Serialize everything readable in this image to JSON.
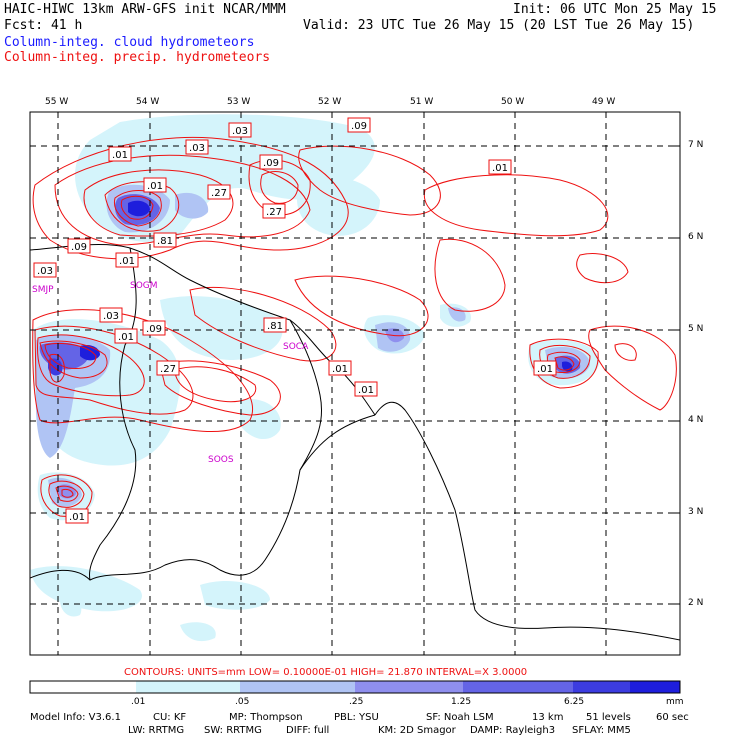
{
  "header": {
    "line1_left": "HAIC-HIWC 13km ARW-GFS init   NCAR/MMM",
    "line1_right": "Init: 06 UTC Mon 25 May 15",
    "line2_left": "Fcst:   41 h",
    "line2_right": "Valid: 23 UTC Tue 26 May 15 (20 LST Tue 26 May 15)",
    "legend_cloud": "Column-integ. cloud hydrometeors",
    "legend_precip": "Column-integ. precip. hydrometeors"
  },
  "axes": {
    "lon_labels": [
      "55 W",
      "54 W",
      "53 W",
      "52 W",
      "51 W",
      "50 W",
      "49 W"
    ],
    "lat_labels": [
      "7 N",
      "6 N",
      "5 N",
      "4 N",
      "3 N",
      "2 N"
    ]
  },
  "stations": [
    "SMJP",
    "SOGM",
    "SOCA",
    "SOOS"
  ],
  "contour_labels": [
    ".03",
    ".09",
    ".01",
    ".03",
    ".09",
    ".01",
    ".27",
    ".01",
    ".27",
    ".09",
    ".03",
    ".01",
    ".81",
    ".03",
    ".01",
    ".81",
    ".09",
    ".27",
    ".01",
    ".01",
    ".01",
    ".01"
  ],
  "contour_info": "CONTOURS:  UNITS=mm  LOW= 0.10000E-01  HIGH=  21.870     INTERVAL=X  3.0000",
  "colorbar": {
    "ticks": [
      ".01",
      ".05",
      ".25",
      "1.25",
      "6.25"
    ],
    "unit": "mm",
    "colors": [
      "#ffffff",
      "#d4f4fb",
      "#b0c4f4",
      "#8f8fee",
      "#6464e6",
      "#3c3ce0",
      "#1e1edc",
      "#0000d8"
    ]
  },
  "model_info": {
    "line1": [
      "Model Info: V3.6.1",
      "CU: KF",
      "MP: Thompson",
      "PBL: YSU",
      "SF: Noah LSM",
      "13 km",
      "51 levels",
      "60 sec"
    ],
    "line2": [
      "LW: RRTMG",
      "SW: RRTMG",
      "DIFF: full",
      "KM: 2D Smagor",
      "DAMP: Rayleigh3",
      "SFLAY: MM5"
    ]
  }
}
